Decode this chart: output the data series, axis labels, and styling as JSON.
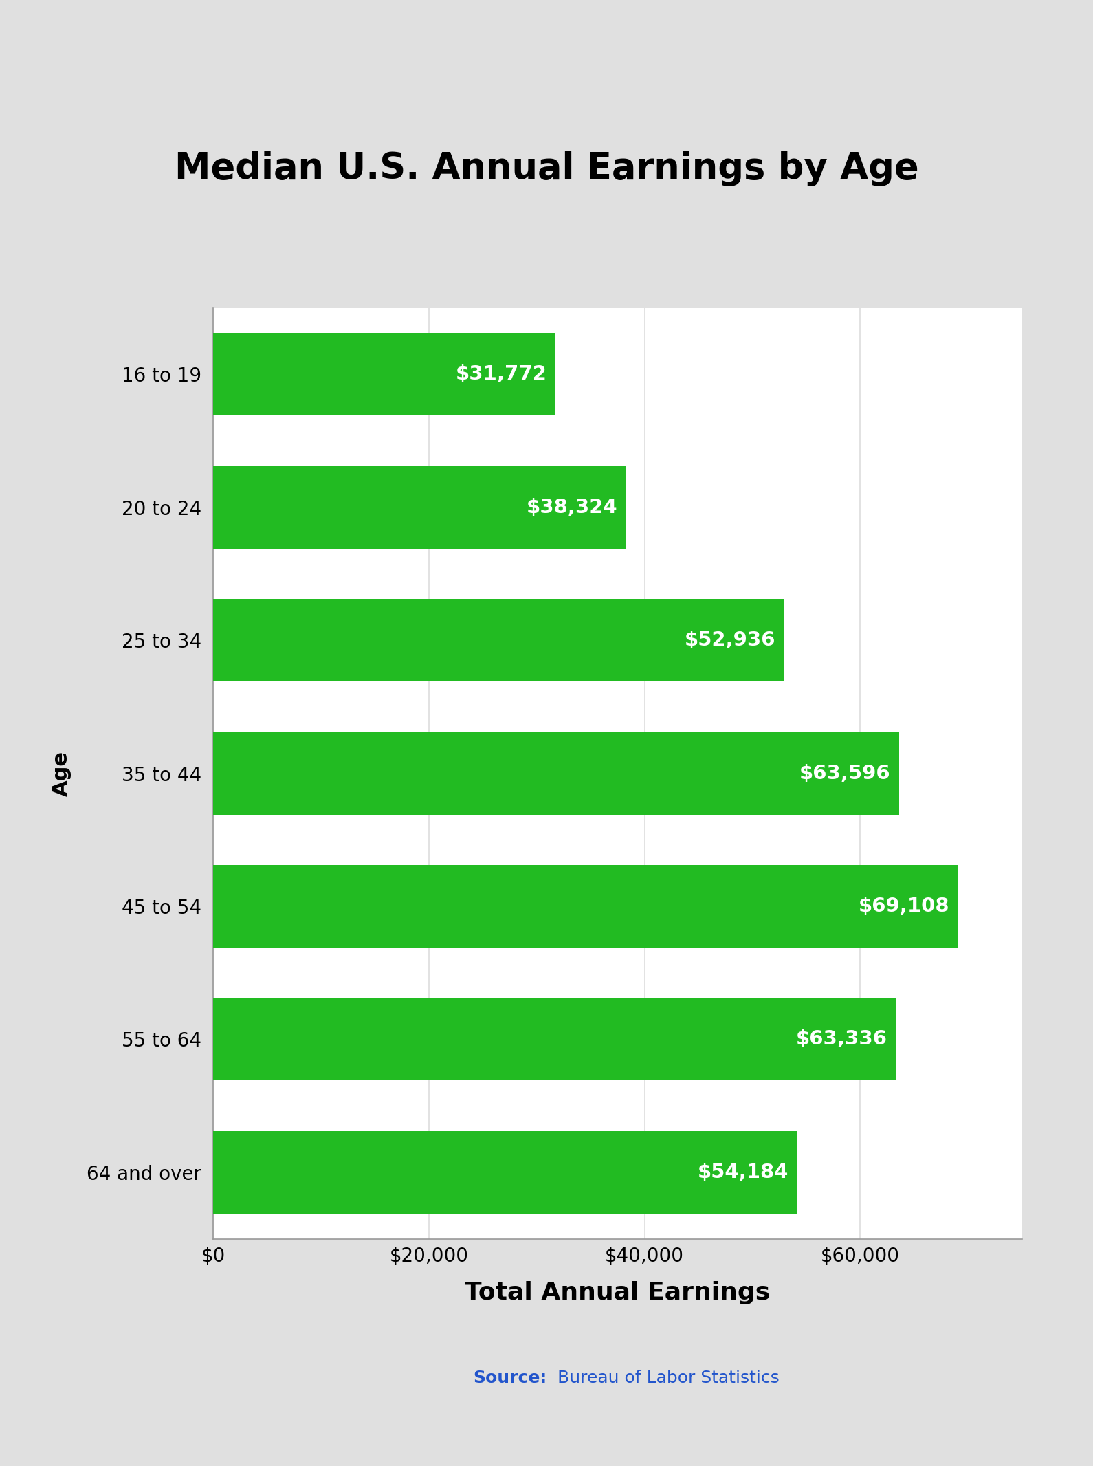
{
  "title": "Median U.S. Annual Earnings by Age",
  "categories": [
    "16 to 19",
    "20 to 24",
    "25 to 34",
    "35 to 44",
    "45 to 54",
    "55 to 64",
    "64 and over"
  ],
  "values": [
    31772,
    38324,
    52936,
    63596,
    69108,
    63336,
    54184
  ],
  "bar_color": "#22BB22",
  "bar_labels": [
    "$31,772",
    "$38,324",
    "$52,936",
    "$63,596",
    "$69,108",
    "$63,336",
    "$54,184"
  ],
  "xlabel": "Total Annual Earnings",
  "ylabel": "Age",
  "xlim": [
    0,
    75000
  ],
  "xticks": [
    0,
    20000,
    40000,
    60000
  ],
  "xtick_labels": [
    "$0",
    "$20,000",
    "$40,000",
    "$60,000"
  ],
  "title_fontsize": 38,
  "xlabel_fontsize": 26,
  "ylabel_fontsize": 22,
  "tick_fontsize": 20,
  "bar_label_fontsize": 21,
  "source_bold": "Source:",
  "source_text": " Bureau of Labor Statistics",
  "source_color": "#2255cc",
  "background_outer": "#e0e0e0",
  "background_inner": "#ffffff",
  "grid_color": "#dddddd",
  "spine_color": "#999999"
}
